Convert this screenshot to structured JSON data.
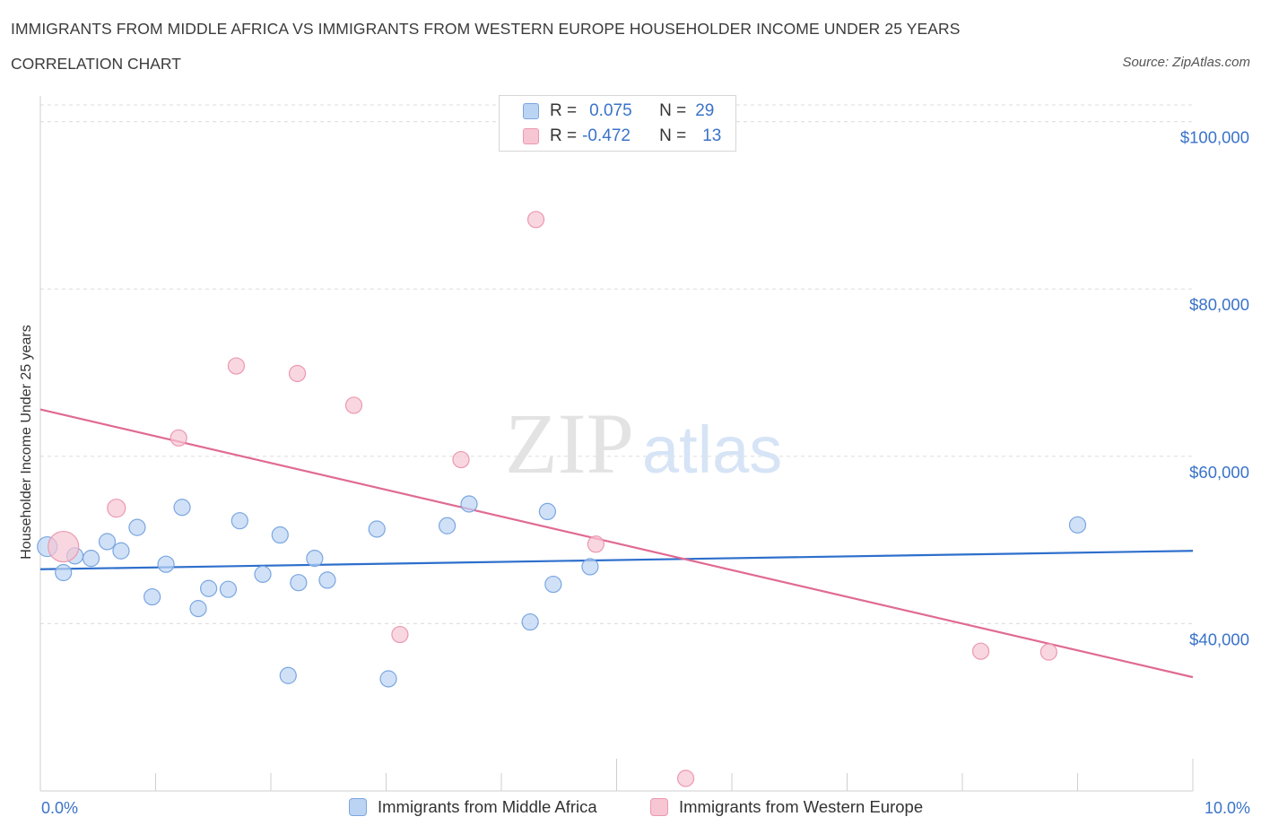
{
  "header": {
    "title": "IMMIGRANTS FROM MIDDLE AFRICA VS IMMIGRANTS FROM WESTERN EUROPE HOUSEHOLDER INCOME UNDER 25 YEARS",
    "subtitle": "CORRELATION CHART",
    "source": "Source: ZipAtlas.com"
  },
  "legend": {
    "rows": [
      {
        "r_label": "R =",
        "r_value": "0.075",
        "n_label": "N =",
        "n_value": "29"
      },
      {
        "r_label": "R =",
        "r_value": "-0.472",
        "n_label": "N =",
        "n_value": "13"
      }
    ]
  },
  "colors": {
    "blue_fill": "#bcd4f4",
    "blue_stroke": "#7aa6e0",
    "blue_line": "#2e6fcc",
    "pink_fill": "#f7c6d3",
    "pink_stroke": "#ec98b0",
    "pink_line": "#e06a93",
    "tick_text": "#3a73c9",
    "grid": "#dcdcdc"
  },
  "chart_data": {
    "type": "scatter",
    "title": "IMMIGRANTS FROM MIDDLE AFRICA VS IMMIGRANTS FROM WESTERN EUROPE HOUSEHOLDER INCOME UNDER 25 YEARS",
    "xlabel": "",
    "ylabel": "Householder Income Under 25 years",
    "xlim": [
      0,
      10
    ],
    "ylim": [
      20000,
      102000
    ],
    "x_tick_labels": [
      "0.0%",
      "10.0%"
    ],
    "y_ticks": [
      40000,
      60000,
      80000,
      100000
    ],
    "y_tick_labels": [
      "$40,000",
      "$60,000",
      "$80,000",
      "$100,000"
    ],
    "grid": true,
    "legend_placement": "bottom-center",
    "watermark": {
      "zip": "ZIP",
      "atlas": "atlas"
    },
    "series": [
      {
        "name": "Immigrants from Middle Africa",
        "color": "#7aa6e0",
        "points": [
          [
            0.06,
            49200,
            11
          ],
          [
            0.2,
            46100,
            9
          ],
          [
            0.3,
            48100,
            9
          ],
          [
            0.44,
            47800,
            9
          ],
          [
            0.58,
            49800,
            9
          ],
          [
            0.7,
            48700,
            9
          ],
          [
            0.84,
            51500,
            9
          ],
          [
            0.97,
            43200,
            9
          ],
          [
            1.09,
            47100,
            9
          ],
          [
            1.23,
            53900,
            9
          ],
          [
            1.37,
            41800,
            9
          ],
          [
            1.46,
            44200,
            9
          ],
          [
            1.63,
            44100,
            9
          ],
          [
            1.73,
            52300,
            9
          ],
          [
            1.93,
            45900,
            9
          ],
          [
            2.08,
            50600,
            9
          ],
          [
            2.15,
            33800,
            9
          ],
          [
            2.24,
            44900,
            9
          ],
          [
            2.38,
            47800,
            9
          ],
          [
            2.49,
            45200,
            9
          ],
          [
            2.92,
            51300,
            9
          ],
          [
            3.02,
            33400,
            9
          ],
          [
            3.53,
            51700,
            9
          ],
          [
            3.72,
            54300,
            9
          ],
          [
            4.25,
            40200,
            9
          ],
          [
            4.4,
            53400,
            9
          ],
          [
            4.45,
            44700,
            9
          ],
          [
            4.77,
            46800,
            9
          ],
          [
            9.0,
            51800,
            9
          ]
        ],
        "trend": {
          "x": [
            0,
            10
          ],
          "y": [
            46500,
            48700
          ]
        }
      },
      {
        "name": "Immigrants from Western Europe",
        "color": "#ec98b0",
        "points": [
          [
            0.2,
            49200,
            17
          ],
          [
            0.66,
            53800,
            10
          ],
          [
            1.2,
            62200,
            9
          ],
          [
            1.7,
            70800,
            9
          ],
          [
            2.23,
            69900,
            9
          ],
          [
            2.72,
            66100,
            9
          ],
          [
            3.12,
            38700,
            9
          ],
          [
            3.65,
            59600,
            9
          ],
          [
            4.3,
            88300,
            9
          ],
          [
            4.82,
            49500,
            9
          ],
          [
            5.6,
            21500,
            9
          ],
          [
            8.16,
            36700,
            9
          ],
          [
            8.75,
            36600,
            9
          ]
        ],
        "trend": {
          "x": [
            0,
            10
          ],
          "y": [
            65600,
            33600
          ]
        }
      }
    ]
  }
}
